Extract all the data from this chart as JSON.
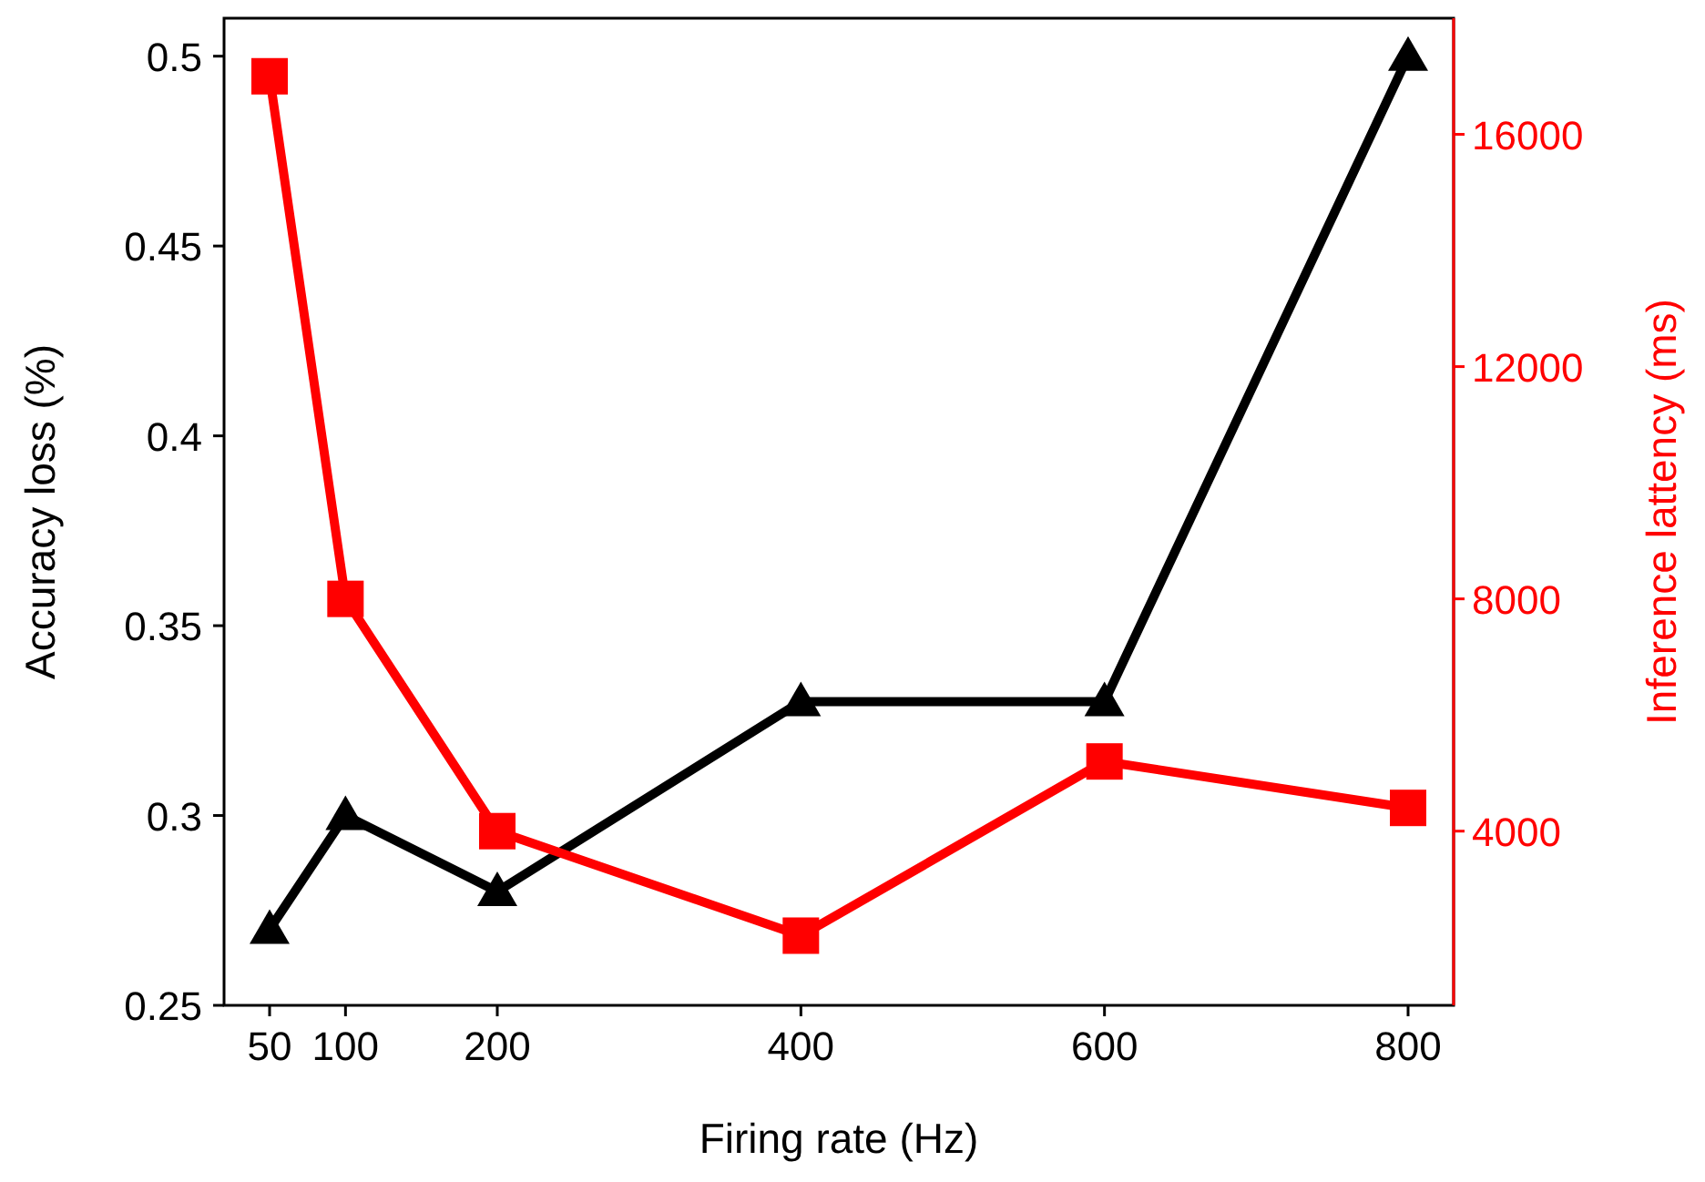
{
  "chart_data": {
    "type": "line",
    "xlabel": "Firing rate (Hz)",
    "ylabel": "Accuracy loss (%)",
    "y2label": "Inference lattency (ms)",
    "x": [
      50,
      100,
      200,
      400,
      600,
      800
    ],
    "xlim": [
      20,
      830
    ],
    "xticks": [
      50,
      100,
      200,
      400,
      600,
      800
    ],
    "ylim": [
      0.25,
      0.51
    ],
    "yticks": [
      0.25,
      0.3,
      0.35,
      0.4,
      0.45,
      0.5
    ],
    "y2lim": [
      1000,
      18000
    ],
    "y2ticks": [
      4000,
      8000,
      12000,
      16000
    ],
    "grid": false,
    "line_style": "solid",
    "series": [
      {
        "color": "#000000",
        "marker": "triangle",
        "values": [
          0.27,
          0.3,
          0.28,
          0.33,
          0.33,
          0.5
        ]
      },
      {
        "color": "#ff0000",
        "marker": "square",
        "axis": "y2",
        "values": [
          17000,
          8000,
          4000,
          2200,
          5200,
          4400
        ]
      }
    ]
  }
}
